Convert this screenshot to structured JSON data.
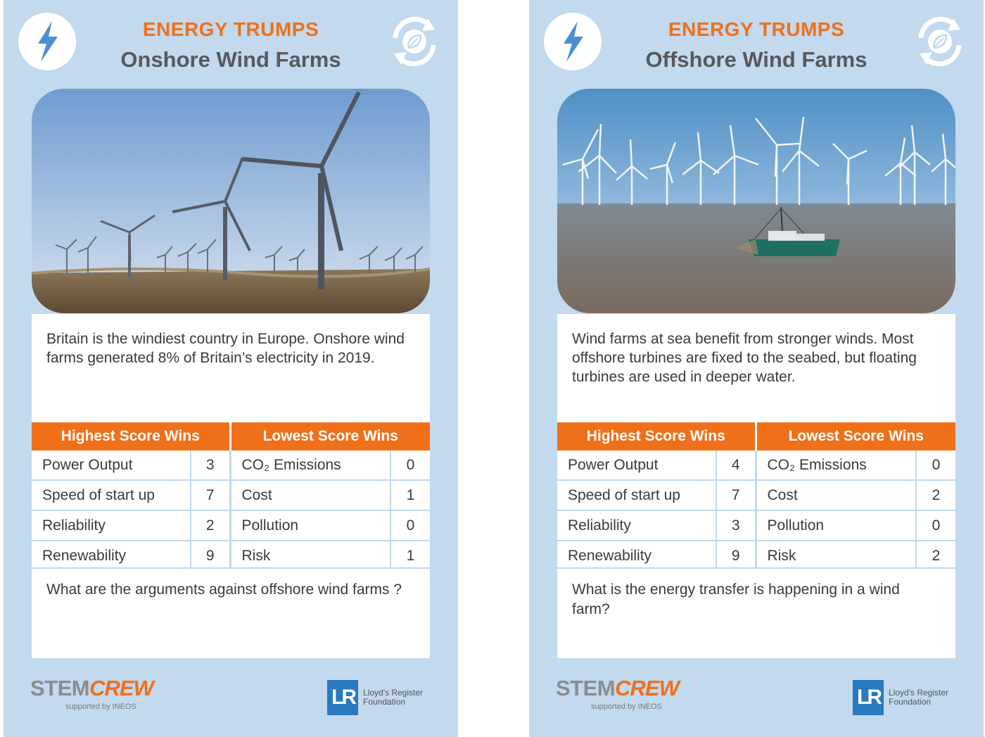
{
  "game_title": "ENERGY TRUMPS",
  "cards": [
    {
      "title": "Onshore Wind Farms",
      "description": "Britain is the windiest country in Europe. Onshore wind farms generated 8% of Britain’s electricity in 2019.",
      "highest_header": "Highest Score Wins",
      "lowest_header": "Lowest Score Wins",
      "stats": [
        {
          "high_label": "Power Output",
          "high_value": "3",
          "low_label": "CO₂ Emissions",
          "low_value": "0"
        },
        {
          "high_label": "Speed of start up",
          "high_value": "7",
          "low_label": "Cost",
          "low_value": "1"
        },
        {
          "high_label": "Reliability",
          "high_value": "2",
          "low_label": "Pollution",
          "low_value": "0"
        },
        {
          "high_label": "Renewability",
          "high_value": "9",
          "low_label": "Risk",
          "low_value": "1"
        }
      ],
      "question": "What are the arguments against offshore wind farms ?"
    },
    {
      "title": "Offshore Wind Farms",
      "description": "Wind farms at sea benefit from stronger winds. Most offshore turbines are fixed to the seabed, but floating turbines are used in deeper water.",
      "highest_header": "Highest Score Wins",
      "lowest_header": "Lowest Score Wins",
      "stats": [
        {
          "high_label": "Power Output",
          "high_value": "4",
          "low_label": "CO₂ Emissions",
          "low_value": "0"
        },
        {
          "high_label": "Speed of start up",
          "high_value": "7",
          "low_label": "Cost",
          "low_value": "2"
        },
        {
          "high_label": "Reliability",
          "high_value": "3",
          "low_label": "Pollution",
          "low_value": "0"
        },
        {
          "high_label": "Renewability",
          "high_value": "9",
          "low_label": "Risk",
          "low_value": "2"
        }
      ],
      "question": "What is the energy transfer is happening in a wind farm?"
    }
  ],
  "footer": {
    "stem_part1": "STEM",
    "stem_part2": "CREW",
    "supported_by": "supported by INEOS",
    "lr_mark": "LR",
    "lr_name": "Lloyd's Register Foundation"
  },
  "colors": {
    "accent_orange": "#f0701a",
    "card_blue": "#c2d9ee",
    "title_grey": "#595959",
    "lr_blue": "#2a78c0"
  },
  "icons": {
    "left_badge": "lightning-bolt-icon",
    "right_badge": "recycle-leaf-icon"
  }
}
